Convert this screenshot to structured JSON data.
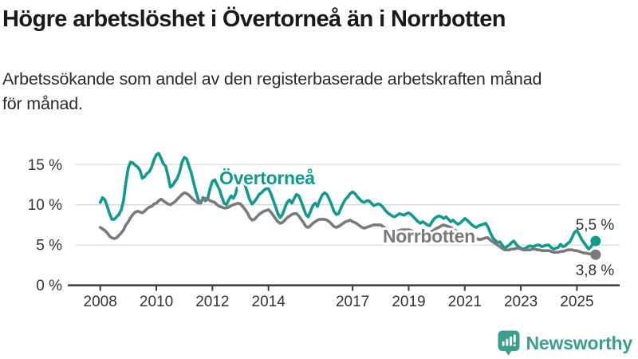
{
  "header": {
    "title": "Högre arbetslöshet i Övertorneå än i Norrbotten",
    "subtitle_lines": [
      "Arbetssökande som andel av den registerbaserade arbetskraften månad",
      "för månad."
    ]
  },
  "chart_data": {
    "type": "line",
    "unit": "%",
    "x_interval": "month",
    "x_start": "2008-01",
    "x_end": "2025-09",
    "x_tick_labels": [
      "2008",
      "2010",
      "2012",
      "2014",
      "2017",
      "2019",
      "2021",
      "2023",
      "2025"
    ],
    "y_ticks": [
      {
        "value": 0,
        "label": "0 %"
      },
      {
        "value": 5,
        "label": "5 %"
      },
      {
        "value": 10,
        "label": "10 %"
      },
      {
        "value": 15,
        "label": "15 %"
      }
    ],
    "ylim": [
      0,
      17.5
    ],
    "grid": "horizontal",
    "legend_position": "inline-labels",
    "series": [
      {
        "name": "Övertorneå",
        "color": "#0f9a8e",
        "end_value": 5.5,
        "end_label": "5,5 %",
        "values": [
          10.3,
          10.9,
          10.6,
          9.8,
          8.9,
          8.2,
          8.2,
          8.5,
          8.8,
          9.4,
          10.6,
          12.8,
          14.6,
          15.3,
          15.2,
          14.9,
          14.7,
          14.3,
          13.3,
          13.5,
          13.9,
          14.1,
          14.7,
          15.6,
          16.2,
          16.4,
          15.8,
          15.1,
          14.8,
          13.6,
          12.2,
          12.4,
          12.9,
          13.3,
          14.1,
          15.3,
          15.9,
          15.7,
          14.8,
          13.9,
          12.7,
          11.6,
          10.6,
          10.2,
          10.9,
          10.5,
          10.8,
          12.0,
          12.9,
          13.1,
          12.5,
          11.9,
          11.0,
          10.2,
          10.0,
          10.6,
          11.1,
          10.8,
          11.4,
          12.6,
          13.3,
          13.0,
          12.4,
          11.5,
          10.6,
          10.1,
          10.4,
          10.8,
          11.3,
          11.5,
          11.8,
          12.0,
          12.0,
          11.4,
          10.6,
          9.8,
          8.9,
          8.4,
          8.8,
          9.6,
          10.3,
          10.6,
          10.2,
          10.8,
          11.3,
          11.1,
          10.4,
          9.6,
          8.8,
          8.5,
          9.2,
          9.9,
          10.2,
          9.8,
          10.6,
          11.2,
          11.5,
          11.3,
          10.7,
          10.0,
          9.2,
          8.8,
          8.9,
          9.6,
          10.2,
          10.7,
          11.0,
          11.4,
          11.6,
          11.4,
          11.0,
          10.7,
          10.4,
          10.3,
          10.5,
          10.5,
          10.2,
          9.9,
          10.0,
          10.1,
          10.0,
          9.7,
          9.3,
          9.0,
          8.8,
          8.6,
          8.5,
          8.7,
          8.9,
          8.8,
          8.7,
          8.9,
          9.0,
          8.8,
          8.5,
          8.2,
          7.9,
          7.7,
          7.9,
          7.7,
          7.5,
          7.4,
          7.9,
          8.3,
          8.5,
          8.6,
          8.5,
          8.3,
          8.5,
          8.2,
          7.9,
          8.1,
          7.8,
          7.6,
          7.7,
          8.0,
          8.3,
          8.1,
          7.8,
          7.5,
          7.3,
          7.2,
          7.4,
          7.5,
          7.6,
          7.7,
          7.2,
          6.5,
          5.9,
          5.6,
          5.3,
          5.4,
          5.0,
          4.6,
          4.8,
          5.0,
          5.3,
          5.5,
          5.1,
          4.8,
          4.6,
          4.5,
          4.6,
          4.8,
          4.9,
          4.8,
          4.9,
          5.0,
          5.0,
          4.8,
          4.9,
          5.0,
          5.0,
          4.7,
          4.5,
          4.6,
          4.7,
          5.1,
          4.8,
          4.9,
          5.2,
          5.4,
          6.0,
          6.6,
          6.8,
          6.3,
          5.7,
          5.3,
          4.9,
          4.5,
          4.8,
          5.2,
          5.5
        ]
      },
      {
        "name": "Norrbotten",
        "color": "#7a7a7a",
        "end_value": 3.8,
        "end_label": "3,8 %",
        "values": [
          7.2,
          7.0,
          6.8,
          6.5,
          6.1,
          5.9,
          5.8,
          5.9,
          6.2,
          6.5,
          6.9,
          7.5,
          7.9,
          8.4,
          8.8,
          9.1,
          9.2,
          9.1,
          9.0,
          9.2,
          9.5,
          9.7,
          9.8,
          10.1,
          10.2,
          10.5,
          10.7,
          10.5,
          10.3,
          10.1,
          10.0,
          10.2,
          10.4,
          10.7,
          11.0,
          11.3,
          11.5,
          11.4,
          11.2,
          10.9,
          10.6,
          10.4,
          10.2,
          10.4,
          10.6,
          10.8,
          10.7,
          10.5,
          10.4,
          10.3,
          10.0,
          9.8,
          9.7,
          9.6,
          9.6,
          9.7,
          9.9,
          10.0,
          10.1,
          10.2,
          10.1,
          9.8,
          9.4,
          9.0,
          8.4,
          8.1,
          8.2,
          8.5,
          8.8,
          9.0,
          9.2,
          9.3,
          9.4,
          9.1,
          8.7,
          8.3,
          7.9,
          7.7,
          7.8,
          8.1,
          8.4,
          8.6,
          8.8,
          8.9,
          8.9,
          8.6,
          8.2,
          7.8,
          7.3,
          7.2,
          7.4,
          7.7,
          7.9,
          8.1,
          8.2,
          8.2,
          8.2,
          8.1,
          7.9,
          7.6,
          7.3,
          7.2,
          7.3,
          7.5,
          7.7,
          7.9,
          8.0,
          8.1,
          7.9,
          7.8,
          7.6,
          7.4,
          7.2,
          7.1,
          7.2,
          7.3,
          7.4,
          7.5,
          7.5,
          7.5,
          7.5,
          7.3,
          7.1,
          6.9,
          6.7,
          6.6,
          6.6,
          6.7,
          6.8,
          6.9,
          6.9,
          6.9,
          6.9,
          6.8,
          6.7,
          6.5,
          6.4,
          6.3,
          6.4,
          6.5,
          6.6,
          6.6,
          6.7,
          6.9,
          7.1,
          7.2,
          7.4,
          7.5,
          7.4,
          7.3,
          7.2,
          7.0,
          6.8,
          6.6,
          6.5,
          6.5,
          6.4,
          6.3,
          6.2,
          6.1,
          5.9,
          5.8,
          5.7,
          5.7,
          5.8,
          5.9,
          5.9,
          5.6,
          5.4,
          5.2,
          5.0,
          4.8,
          4.6,
          4.4,
          4.4,
          4.4,
          4.5,
          4.5,
          4.6,
          4.6,
          4.5,
          4.4,
          4.4,
          4.4,
          4.4,
          4.5,
          4.5,
          4.4,
          4.4,
          4.3,
          4.3,
          4.3,
          4.3,
          4.2,
          4.1,
          4.1,
          4.1,
          4.2,
          4.2,
          4.3,
          4.4,
          4.4,
          4.4,
          4.3,
          4.3,
          4.2,
          4.1,
          4.0,
          4.0,
          3.9,
          3.9,
          3.8,
          3.8
        ]
      }
    ]
  },
  "footer": {
    "brand": "Newsworthy",
    "brand_color": "#3a9e8d"
  }
}
